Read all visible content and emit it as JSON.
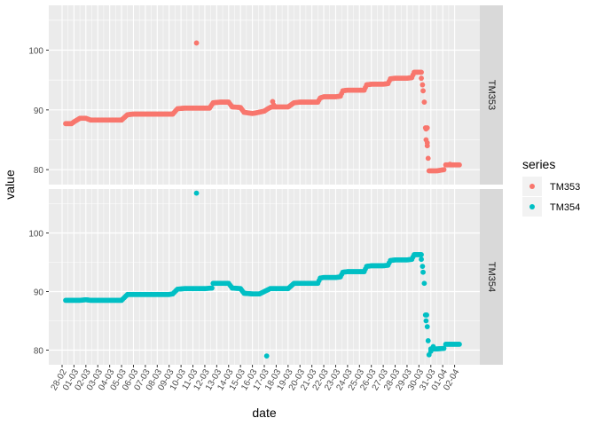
{
  "chart_data": {
    "type": "scatter",
    "xlabel": "date",
    "ylabel": "value",
    "x_tick_labels": [
      "28-02",
      "01-03",
      "02-03",
      "03-03",
      "04-03",
      "05-03",
      "06-03",
      "07-03",
      "08-03",
      "09-03",
      "10-03",
      "11-03",
      "12-03",
      "13-03",
      "14-03",
      "15-03",
      "16-03",
      "17-03",
      "18-03",
      "19-03",
      "20-03",
      "21-03",
      "22-03",
      "23-03",
      "24-03",
      "25-03",
      "26-03",
      "27-03",
      "28-03",
      "29-03",
      "30-03",
      "31-03",
      "01-04",
      "02-04"
    ],
    "y_ticks": [
      80,
      90,
      100
    ],
    "ylim": [
      77.5,
      107.5
    ],
    "xlim_days": [
      0,
      34
    ],
    "legend": {
      "title": "series",
      "placement": "right",
      "entries": [
        {
          "name": "TM353",
          "color": "#F8766D"
        },
        {
          "name": "TM354",
          "color": "#00BFC4"
        }
      ]
    },
    "panels": [
      {
        "strip": "TM353",
        "color": "#F8766D",
        "anchors": [
          [
            0.3,
            87.7
          ],
          [
            0.8,
            87.7
          ],
          [
            1.0,
            88.0
          ],
          [
            1.5,
            88.6
          ],
          [
            2.0,
            88.6
          ],
          [
            2.4,
            88.3
          ],
          [
            3.0,
            88.3
          ],
          [
            3.5,
            88.3
          ],
          [
            4.0,
            88.3
          ],
          [
            4.6,
            88.3
          ],
          [
            5.0,
            88.3
          ],
          [
            5.5,
            89.2
          ],
          [
            6.0,
            89.3
          ],
          [
            7.0,
            89.3
          ],
          [
            8.0,
            89.3
          ],
          [
            9.0,
            89.3
          ],
          [
            9.3,
            89.3
          ],
          [
            9.7,
            90.2
          ],
          [
            10.3,
            90.3
          ],
          [
            11.0,
            90.3
          ],
          [
            11.5,
            90.3
          ],
          [
            12.4,
            90.3
          ],
          [
            12.7,
            91.2
          ],
          [
            13.3,
            91.3
          ],
          [
            14.0,
            91.3
          ],
          [
            14.3,
            90.5
          ],
          [
            15.0,
            90.4
          ],
          [
            15.3,
            89.6
          ],
          [
            16.0,
            89.4
          ],
          [
            16.3,
            89.5
          ],
          [
            17.0,
            89.8
          ],
          [
            17.3,
            90.2
          ],
          [
            17.6,
            90.5
          ],
          [
            18.0,
            90.5
          ],
          [
            18.5,
            90.5
          ],
          [
            19.0,
            90.5
          ],
          [
            19.5,
            91.2
          ],
          [
            20.0,
            91.3
          ],
          [
            21.0,
            91.3
          ],
          [
            21.5,
            91.3
          ],
          [
            21.7,
            92.0
          ],
          [
            22.0,
            92.2
          ],
          [
            23.0,
            92.2
          ],
          [
            23.4,
            92.3
          ],
          [
            23.6,
            93.2
          ],
          [
            24.0,
            93.3
          ],
          [
            25.0,
            93.3
          ],
          [
            25.4,
            93.3
          ],
          [
            25.6,
            94.2
          ],
          [
            26.0,
            94.3
          ],
          [
            27.0,
            94.3
          ],
          [
            27.4,
            94.4
          ],
          [
            27.6,
            95.2
          ],
          [
            28.0,
            95.3
          ],
          [
            29.0,
            95.3
          ],
          [
            29.4,
            95.4
          ],
          [
            29.6,
            96.3
          ],
          [
            30.0,
            96.3
          ],
          [
            30.2,
            96.3
          ],
          [
            30.3,
            94.2
          ],
          [
            30.45,
            91.3
          ],
          [
            30.55,
            87.0
          ],
          [
            30.6,
            85.0
          ],
          [
            30.7,
            84.0
          ],
          [
            30.85,
            79.8
          ],
          [
            31.5,
            79.8
          ],
          [
            32.1,
            80.0
          ],
          [
            32.25,
            80.8
          ],
          [
            33.0,
            80.8
          ],
          [
            33.4,
            80.8
          ]
        ],
        "extra_points": [
          [
            11.3,
            101.2
          ],
          [
            17.7,
            91.4
          ],
          [
            17.8,
            90.8
          ],
          [
            30.2,
            95.3
          ],
          [
            30.35,
            93.2
          ],
          [
            30.7,
            84.5
          ],
          [
            30.6,
            86.8
          ],
          [
            30.7,
            87.0
          ],
          [
            32.6,
            80.9
          ]
        ]
      },
      {
        "strip": "TM354",
        "color": "#00BFC4",
        "anchors": [
          [
            0.3,
            88.5
          ],
          [
            1.0,
            88.5
          ],
          [
            1.5,
            88.5
          ],
          [
            2.0,
            88.6
          ],
          [
            2.4,
            88.5
          ],
          [
            3.0,
            88.5
          ],
          [
            3.5,
            88.5
          ],
          [
            4.0,
            88.5
          ],
          [
            4.6,
            88.5
          ],
          [
            5.0,
            88.5
          ],
          [
            5.5,
            89.5
          ],
          [
            6.0,
            89.5
          ],
          [
            7.0,
            89.5
          ],
          [
            8.0,
            89.5
          ],
          [
            9.0,
            89.5
          ],
          [
            9.3,
            89.6
          ],
          [
            9.7,
            90.4
          ],
          [
            10.3,
            90.5
          ],
          [
            11.0,
            90.5
          ],
          [
            11.5,
            90.5
          ],
          [
            12.0,
            90.5
          ],
          [
            12.6,
            90.6
          ],
          [
            12.7,
            91.4
          ],
          [
            13.3,
            91.4
          ],
          [
            14.0,
            91.4
          ],
          [
            14.3,
            90.6
          ],
          [
            15.0,
            90.5
          ],
          [
            15.3,
            89.7
          ],
          [
            16.0,
            89.6
          ],
          [
            16.6,
            89.6
          ],
          [
            17.5,
            90.5
          ],
          [
            18.0,
            90.5
          ],
          [
            18.5,
            90.5
          ],
          [
            19.0,
            90.5
          ],
          [
            19.5,
            91.4
          ],
          [
            20.0,
            91.4
          ],
          [
            21.0,
            91.4
          ],
          [
            21.5,
            91.4
          ],
          [
            21.7,
            92.3
          ],
          [
            22.0,
            92.4
          ],
          [
            23.0,
            92.4
          ],
          [
            23.4,
            92.5
          ],
          [
            23.6,
            93.3
          ],
          [
            24.0,
            93.4
          ],
          [
            25.0,
            93.4
          ],
          [
            25.4,
            93.4
          ],
          [
            25.6,
            94.3
          ],
          [
            26.0,
            94.4
          ],
          [
            27.0,
            94.4
          ],
          [
            27.4,
            94.5
          ],
          [
            27.6,
            95.3
          ],
          [
            28.0,
            95.4
          ],
          [
            29.0,
            95.4
          ],
          [
            29.4,
            95.5
          ],
          [
            29.6,
            96.3
          ],
          [
            30.0,
            96.3
          ],
          [
            30.2,
            96.3
          ],
          [
            30.3,
            94.3
          ],
          [
            30.45,
            91.4
          ],
          [
            30.55,
            86.0
          ],
          [
            30.6,
            85.0
          ],
          [
            30.7,
            84.0
          ],
          [
            30.85,
            79.2
          ],
          [
            31.0,
            80.2
          ],
          [
            31.5,
            80.2
          ],
          [
            32.1,
            80.3
          ],
          [
            32.25,
            81.0
          ],
          [
            33.0,
            81.0
          ],
          [
            33.4,
            81.0
          ]
        ],
        "extra_points": [
          [
            11.3,
            106.8
          ],
          [
            17.2,
            79.0
          ],
          [
            30.2,
            95.5
          ],
          [
            30.35,
            93.3
          ],
          [
            30.65,
            86.0
          ],
          [
            31.0,
            79.8
          ],
          [
            31.2,
            80.6
          ]
        ]
      }
    ]
  }
}
